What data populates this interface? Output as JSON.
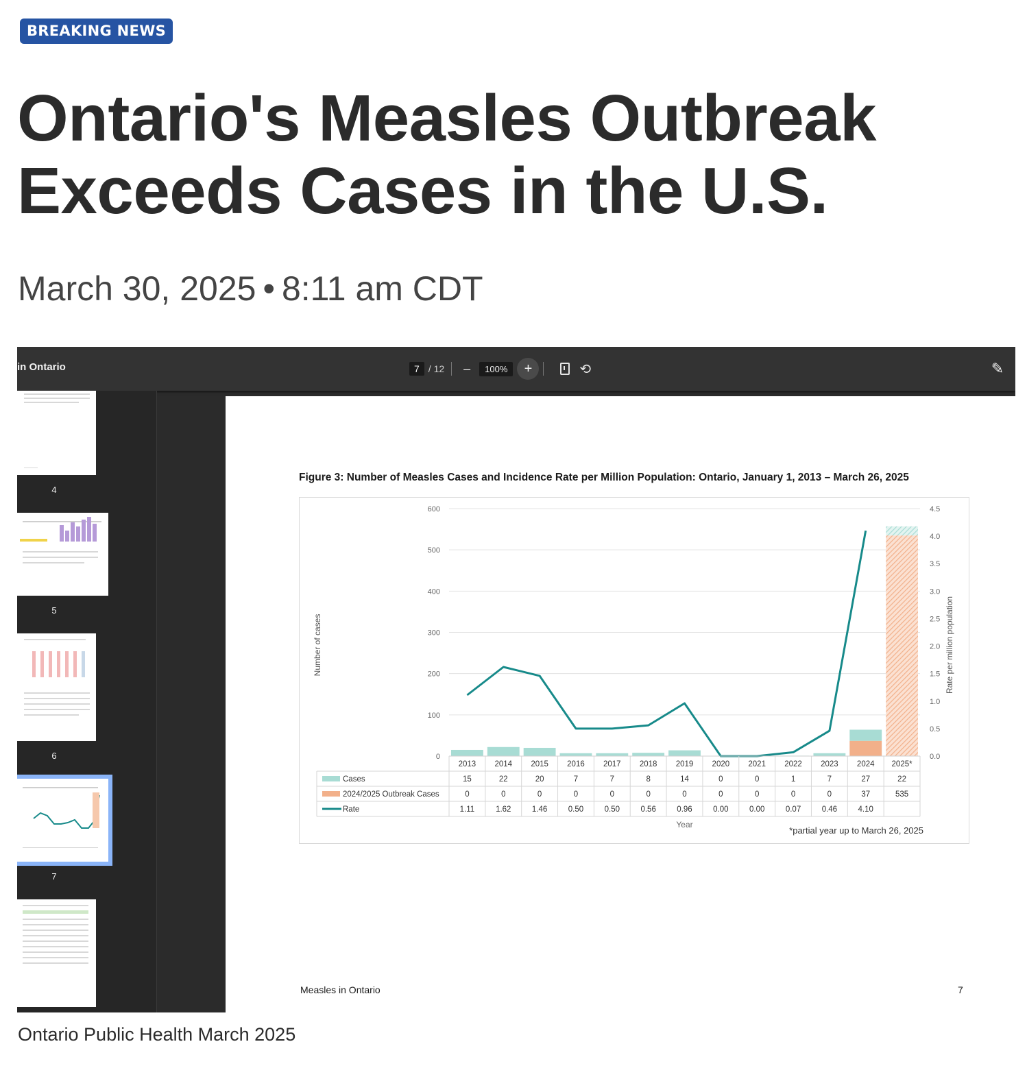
{
  "badge": {
    "label": "BREAKING NEWS"
  },
  "article": {
    "headline": "Ontario's Measles Outbreak Exceeds Cases in the U.S.",
    "date": "March 30, 2025",
    "separator": "•",
    "time": "8:11 am CDT",
    "caption": "Ontario Public Health March 2025"
  },
  "viewer": {
    "doc_title": "in Ontario",
    "current_page": "7",
    "total_pages": "/ 12",
    "zoom": "100%",
    "zoom_out": "–",
    "zoom_in": "+",
    "thumbnails": [
      {
        "label": "4"
      },
      {
        "label": "5"
      },
      {
        "label": "6"
      },
      {
        "label": "7"
      }
    ],
    "page_footer_left": "Measles in Ontario",
    "page_footer_right": "7"
  },
  "colors": {
    "badge_bg": "#2654a3",
    "cases": "#a8dcd4",
    "outbreak": "#f2b08a",
    "rate": "#178a8a",
    "viewer_bg": "#2b2b2b",
    "thumb_selected": "#8ab4f8"
  },
  "chart_data": {
    "type": "bar",
    "title": "Figure 3: Number of Measles Cases and Incidence Rate per Million Population: Ontario, January 1, 2013 – March 26, 2025",
    "categories": [
      "2013",
      "2014",
      "2015",
      "2016",
      "2017",
      "2018",
      "2019",
      "2020",
      "2021",
      "2022",
      "2023",
      "2024",
      "2025*"
    ],
    "series": [
      {
        "name": "Cases",
        "kind": "bar",
        "axis": "left",
        "values": [
          15,
          22,
          20,
          7,
          7,
          8,
          14,
          0,
          0,
          1,
          7,
          27,
          22
        ]
      },
      {
        "name": "2024/2025 Outbreak Cases",
        "kind": "bar",
        "axis": "left",
        "values": [
          0,
          0,
          0,
          0,
          0,
          0,
          0,
          0,
          0,
          0,
          0,
          37,
          535
        ]
      },
      {
        "name": "Rate",
        "kind": "line",
        "axis": "right",
        "values": [
          1.11,
          1.62,
          1.46,
          0.5,
          0.5,
          0.56,
          0.96,
          0.0,
          0.0,
          0.07,
          0.46,
          4.1,
          null
        ]
      }
    ],
    "table_rows": [
      [
        "15",
        "22",
        "20",
        "7",
        "7",
        "8",
        "14",
        "0",
        "0",
        "1",
        "7",
        "27",
        "22"
      ],
      [
        "0",
        "0",
        "0",
        "0",
        "0",
        "0",
        "0",
        "0",
        "0",
        "0",
        "0",
        "37",
        "535"
      ],
      [
        "1.11",
        "1.62",
        "1.46",
        "0.50",
        "0.50",
        "0.56",
        "0.96",
        "0.00",
        "0.00",
        "0.07",
        "0.46",
        "4.10",
        ""
      ]
    ],
    "ylabel": "Number of cases",
    "y2label": "Rate per million population",
    "xlabel": "Year",
    "ylim": [
      0,
      600
    ],
    "yticks": [
      "0",
      "100",
      "200",
      "300",
      "400",
      "500",
      "600"
    ],
    "y2lim": [
      0,
      4.5
    ],
    "y2ticks": [
      "0.0",
      "0.5",
      "1.0",
      "1.5",
      "2.0",
      "2.5",
      "3.0",
      "3.5",
      "4.0",
      "4.5"
    ],
    "note": "*partial year up to March 26, 2025",
    "legend": "table-left",
    "grid": true
  }
}
